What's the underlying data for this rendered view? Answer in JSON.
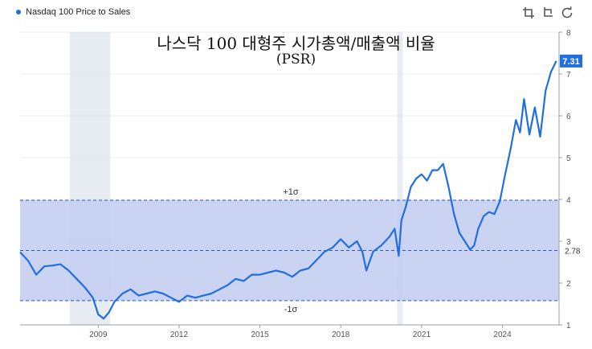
{
  "legend": {
    "label": "Nasdaq 100 Price to Sales",
    "color": "#1f6fe0"
  },
  "toolbar": {
    "icons": [
      "crop-icon",
      "crop-alt-icon",
      "refresh-icon"
    ]
  },
  "chart_data": {
    "type": "line",
    "title": "나스닥 100 대형주 시가총액/매출액 비율",
    "subtitle": "(PSR)",
    "x_ticks": [
      "2009",
      "2012",
      "2015",
      "2018",
      "2021",
      "2024"
    ],
    "y_ticks": [
      "1",
      "2",
      "3",
      "4",
      "5",
      "6",
      "7",
      "8"
    ],
    "xlim": [
      2006.1,
      2026.1
    ],
    "ylim": [
      1,
      8
    ],
    "last_value_label": "7.31",
    "mean": {
      "value": 2.78,
      "label": "2.78"
    },
    "sigma_band": {
      "upper": 3.98,
      "lower": 1.58,
      "upper_label": "+1σ",
      "lower_label": "-1σ",
      "fill": "#c4cdf0"
    },
    "recessions": [
      [
        2007.95,
        2009.45
      ],
      [
        2020.1,
        2020.3
      ]
    ],
    "series": [
      {
        "color": "#1f6fe0",
        "x": [
          2006.1,
          2006.4,
          2006.7,
          2007.0,
          2007.3,
          2007.6,
          2007.9,
          2008.2,
          2008.5,
          2008.8,
          2009.0,
          2009.2,
          2009.4,
          2009.6,
          2009.9,
          2010.2,
          2010.5,
          2010.8,
          2011.1,
          2011.4,
          2011.7,
          2012.0,
          2012.3,
          2012.6,
          2012.9,
          2013.2,
          2013.5,
          2013.8,
          2014.1,
          2014.4,
          2014.7,
          2015.0,
          2015.3,
          2015.6,
          2015.9,
          2016.2,
          2016.5,
          2016.8,
          2017.1,
          2017.4,
          2017.7,
          2018.0,
          2018.3,
          2018.6,
          2018.8,
          2018.95,
          2019.2,
          2019.5,
          2019.8,
          2020.0,
          2020.15,
          2020.25,
          2020.4,
          2020.6,
          2020.8,
          2021.0,
          2021.2,
          2021.4,
          2021.6,
          2021.8,
          2022.0,
          2022.2,
          2022.4,
          2022.6,
          2022.8,
          2022.95,
          2023.1,
          2023.3,
          2023.5,
          2023.7,
          2023.9,
          2024.1,
          2024.3,
          2024.5,
          2024.65,
          2024.8,
          2025.0,
          2025.2,
          2025.4,
          2025.6,
          2025.8,
          2026.0
        ],
        "values": [
          2.74,
          2.53,
          2.2,
          2.4,
          2.42,
          2.45,
          2.3,
          2.1,
          1.9,
          1.65,
          1.25,
          1.15,
          1.3,
          1.55,
          1.75,
          1.85,
          1.7,
          1.75,
          1.8,
          1.75,
          1.65,
          1.55,
          1.7,
          1.65,
          1.7,
          1.75,
          1.85,
          1.95,
          2.1,
          2.05,
          2.2,
          2.2,
          2.25,
          2.3,
          2.25,
          2.15,
          2.3,
          2.35,
          2.55,
          2.75,
          2.85,
          3.05,
          2.85,
          3.0,
          2.75,
          2.3,
          2.75,
          2.9,
          3.1,
          3.3,
          2.65,
          3.5,
          3.8,
          4.3,
          4.5,
          4.6,
          4.45,
          4.7,
          4.7,
          4.85,
          4.3,
          3.65,
          3.2,
          3.0,
          2.8,
          2.9,
          3.3,
          3.6,
          3.7,
          3.65,
          3.95,
          4.6,
          5.2,
          5.9,
          5.6,
          6.4,
          5.55,
          6.2,
          5.5,
          6.6,
          7.05,
          7.31
        ]
      }
    ]
  }
}
